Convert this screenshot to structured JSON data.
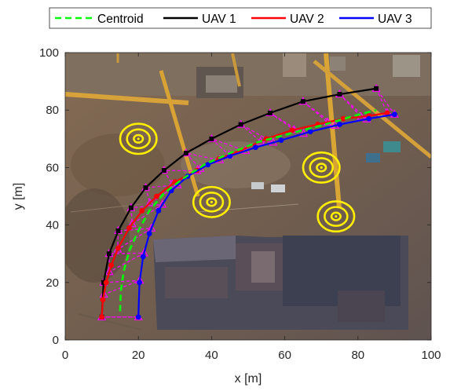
{
  "chart_data": {
    "type": "line",
    "title": "",
    "xlabel": "x [m]",
    "ylabel": "y [m]",
    "xlim": [
      0,
      100
    ],
    "ylim": [
      0,
      100
    ],
    "xticks": [
      "0",
      "20",
      "40",
      "60",
      "80",
      "100"
    ],
    "yticks": [
      "0",
      "20",
      "40",
      "60",
      "80",
      "100"
    ],
    "grid": false,
    "legend_position": "top",
    "background": "aerial photo of construction site with tower cranes",
    "series": [
      {
        "name": "Centroid",
        "color": "#00ff00",
        "style": "dashed",
        "x": [
          15,
          15.2,
          16,
          17.5,
          20,
          23,
          27,
          32,
          38,
          45,
          53,
          62,
          71,
          79,
          85
        ],
        "y": [
          10,
          17,
          24,
          31,
          38,
          45,
          51,
          56,
          61,
          65,
          69,
          72,
          75,
          78,
          80
        ]
      },
      {
        "name": "UAV 1",
        "color": "#000000",
        "style": "solid",
        "marker": "square",
        "x": [
          10,
          10.5,
          12,
          14.5,
          18,
          22,
          27,
          33,
          40,
          48,
          56,
          65,
          75,
          85
        ],
        "y": [
          8,
          20,
          30,
          38,
          46,
          53,
          59,
          65,
          70,
          75,
          79,
          83,
          85.5,
          87.5
        ]
      },
      {
        "name": "UAV 2",
        "color": "#ff0000",
        "style": "solid",
        "marker": "circle",
        "x": [
          10,
          10.3,
          11.2,
          12.6,
          14.5,
          17.5,
          21,
          25,
          30,
          36,
          42,
          48,
          55,
          62,
          69,
          76,
          83,
          88
        ],
        "y": [
          8,
          14,
          20,
          26,
          32,
          39,
          45,
          50,
          55,
          59,
          63,
          66,
          70,
          73,
          75,
          77,
          78,
          79
        ]
      },
      {
        "name": "UAV 3",
        "color": "#0000ff",
        "style": "solid",
        "marker": "circle",
        "x": [
          20,
          20.3,
          21.3,
          23,
          25.5,
          29,
          33.5,
          39,
          45,
          52,
          59,
          67,
          75,
          83,
          90
        ],
        "y": [
          8,
          20,
          29,
          37,
          45,
          52,
          57,
          61,
          64,
          67,
          69.5,
          72.5,
          75,
          77,
          78.5
        ]
      }
    ],
    "formation": {
      "color": "#ff00ff",
      "style": "dashed",
      "marker": "triangle"
    },
    "targets": [
      {
        "x": 20,
        "y": 70
      },
      {
        "x": 40,
        "y": 48
      },
      {
        "x": 70,
        "y": 60
      },
      {
        "x": 74,
        "y": 43
      }
    ],
    "target_color": "#ffee00"
  }
}
